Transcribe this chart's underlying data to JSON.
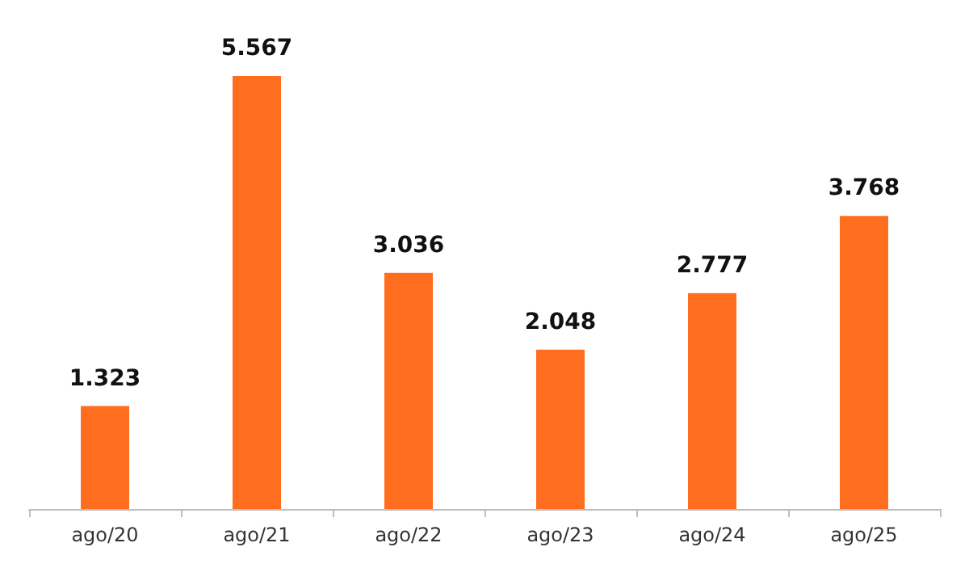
{
  "chart_data": {
    "type": "bar",
    "categories": [
      "ago/20",
      "ago/21",
      "ago/22",
      "ago/23",
      "ago/24",
      "ago/25"
    ],
    "values": [
      1323,
      5567,
      3036,
      2048,
      2777,
      3768
    ],
    "value_labels": [
      "1.323",
      "5.567",
      "3.036",
      "2.048",
      "2.777",
      "3.768"
    ],
    "color": "#ff6d1f"
  }
}
